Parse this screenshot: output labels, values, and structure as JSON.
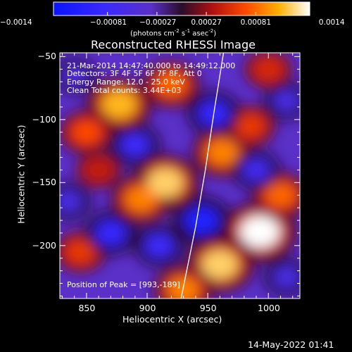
{
  "colorbar": {
    "ticks": [
      "-0.0014",
      "-0.00081",
      "-0.00027",
      "0.00027",
      "0.00081",
      "0.0014"
    ],
    "unit_prefix": "(photons cm",
    "unit_exp1": "-2",
    "unit_mid": " s",
    "unit_exp2": "-1",
    "unit_suffix": " asec",
    "unit_exp3": "-2",
    "unit_close": ")"
  },
  "chart_data": {
    "type": "heatmap",
    "title": "Reconstructed RHESSI Image",
    "xlabel": "Heliocentric X (arcsec)",
    "ylabel": "Heliocentric Y (arcsec)",
    "xlim": [
      828,
      1026
    ],
    "ylim": [
      -242,
      -47
    ],
    "x_ticks": [
      850,
      900,
      950,
      1000
    ],
    "y_ticks": [
      -50,
      -100,
      -150,
      -200
    ],
    "x_tick_labels": [
      "850",
      "900",
      "950",
      "1000"
    ],
    "y_tick_labels": [
      "-50",
      "-100",
      "-150",
      "-200"
    ],
    "colorbar_range": [
      -0.0014,
      0.0014
    ],
    "annotations": [
      "21-Mar-2014 14:47:40.000 to 14:49:12.000",
      "Detectors: 3F 4F 5F 6F 7F 8F, Att 0",
      "Energy Range: 12.0 - 25.0 keV",
      "Clean    Total counts: 3.44E+03"
    ],
    "peak_label": "Position of Peak = [993,-189]",
    "peak": [
      993,
      -189
    ],
    "blobs": [
      {
        "x": 877,
        "y": -88,
        "value": 0.0011
      },
      {
        "x": 920,
        "y": -72,
        "value": 0.0008
      },
      {
        "x": 850,
        "y": -110,
        "value": 0.0007
      },
      {
        "x": 915,
        "y": -150,
        "value": 0.0012
      },
      {
        "x": 895,
        "y": -163,
        "value": 0.0009
      },
      {
        "x": 962,
        "y": -126,
        "value": 0.0009
      },
      {
        "x": 985,
        "y": -105,
        "value": 0.0006
      },
      {
        "x": 993,
        "y": -189,
        "value": 0.0014
      },
      {
        "x": 960,
        "y": -215,
        "value": 0.0012
      },
      {
        "x": 930,
        "y": -235,
        "value": 0.0009
      },
      {
        "x": 1010,
        "y": -160,
        "value": 0.0008
      },
      {
        "x": 845,
        "y": -205,
        "value": 0.0006
      },
      {
        "x": 860,
        "y": -140,
        "value": 0.0004
      },
      {
        "x": 1000,
        "y": -60,
        "value": 0.0005
      },
      {
        "x": 945,
        "y": -180,
        "value": -0.0011
      },
      {
        "x": 955,
        "y": -95,
        "value": -0.0009
      },
      {
        "x": 890,
        "y": -120,
        "value": -0.0008
      },
      {
        "x": 870,
        "y": -190,
        "value": -0.0009
      },
      {
        "x": 910,
        "y": -200,
        "value": -0.0008
      },
      {
        "x": 990,
        "y": -140,
        "value": -0.0007
      },
      {
        "x": 1015,
        "y": -225,
        "value": -0.0006
      },
      {
        "x": 835,
        "y": -165,
        "value": -0.0006
      },
      {
        "x": 840,
        "y": -65,
        "value": -0.0005
      },
      {
        "x": 1015,
        "y": -85,
        "value": -0.0006
      }
    ],
    "limb_curve": [
      [
        963,
        -47
      ],
      [
        955,
        -95
      ],
      [
        948,
        -140
      ],
      [
        940,
        -185
      ],
      [
        928,
        -242
      ]
    ]
  },
  "footer": {
    "timestamp": "14-May-2022 01:41"
  }
}
